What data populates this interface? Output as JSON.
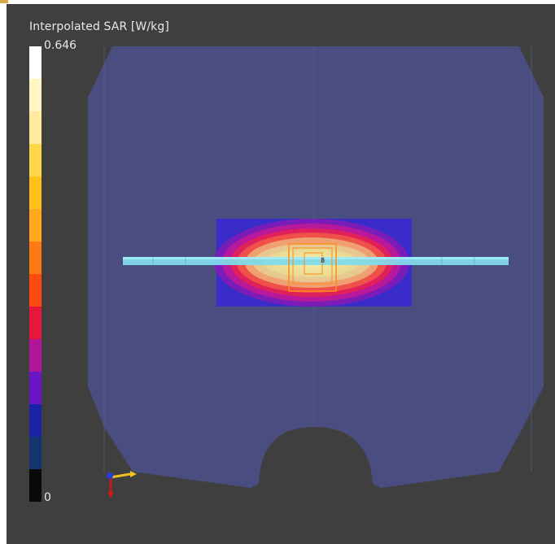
{
  "legend": {
    "title": "Interpolated SAR [W/kg]",
    "max_label": "0.646",
    "min_label": "0",
    "colors": [
      "#ffffff",
      "#fff6c4",
      "#ffeaa0",
      "#ffd84a",
      "#ffc21a",
      "#ffa81e",
      "#ff7a14",
      "#ff4a10",
      "#e8153c",
      "#b2149a",
      "#6a15c8",
      "#1a23a8",
      "#123470",
      "#0a0a0a"
    ]
  },
  "probe_marker": "8",
  "colors": {
    "background": "#3f3f3f",
    "phantom": "#4a4d80",
    "dipole": "#7fdaea",
    "probe_box": "#ff8a1a"
  },
  "icons": {
    "axis": "axis-triad-icon"
  }
}
